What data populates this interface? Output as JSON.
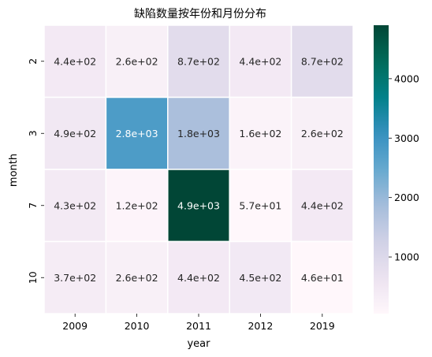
{
  "chart_data": {
    "type": "heatmap",
    "title": "缺陷数量按年份和月份分布",
    "xlabel": "year",
    "ylabel": "month",
    "x_categories": [
      "2009",
      "2010",
      "2011",
      "2012",
      "2019"
    ],
    "y_categories": [
      "2",
      "3",
      "7",
      "10"
    ],
    "values": [
      [
        440,
        260,
        870,
        440,
        870
      ],
      [
        490,
        2800,
        1800,
        160,
        260
      ],
      [
        430,
        120,
        4900,
        57,
        440
      ],
      [
        370,
        260,
        440,
        450,
        46
      ]
    ],
    "labels": [
      [
        "4.4e+02",
        "2.6e+02",
        "8.7e+02",
        "4.4e+02",
        "8.7e+02"
      ],
      [
        "4.9e+02",
        "2.8e+03",
        "1.8e+03",
        "1.6e+02",
        "2.6e+02"
      ],
      [
        "4.3e+02",
        "1.2e+02",
        "4.9e+03",
        "5.7e+01",
        "4.4e+02"
      ],
      [
        "3.7e+02",
        "2.6e+02",
        "4.4e+02",
        "4.5e+02",
        "4.6e+01"
      ]
    ],
    "colorbar": {
      "min": 46,
      "max": 4900,
      "ticks": [
        1000,
        2000,
        3000,
        4000
      ],
      "tick_labels": [
        "1000",
        "2000",
        "3000",
        "4000"
      ]
    },
    "colormap": "PuBuGn",
    "grid": false
  }
}
